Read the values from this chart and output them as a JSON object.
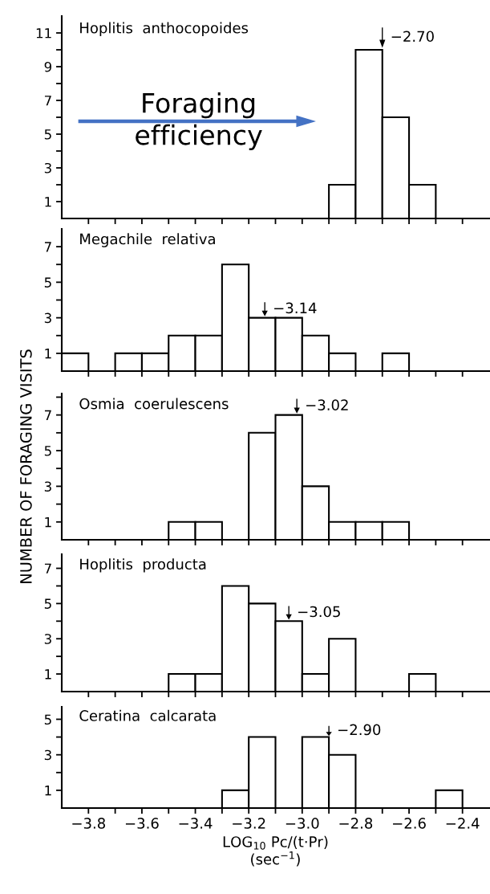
{
  "chart_data": [
    {
      "type": "histogram",
      "bins": [
        -3.9,
        -3.8,
        -3.7,
        -3.6,
        -3.5,
        -3.4,
        -3.3,
        -3.2,
        -3.1,
        -3.0,
        -2.9,
        -2.8,
        -2.7,
        -2.6,
        -2.5,
        -2.4,
        -2.3
      ],
      "values": [
        0,
        0,
        0,
        0,
        0,
        0,
        0,
        0,
        0,
        0,
        2,
        10,
        6,
        2,
        0,
        0
      ],
      "color": "#ffffff",
      "xlim": [
        -3.9,
        -2.3
      ],
      "xticks": [
        -3.8,
        -3.7,
        -3.6,
        -3.5,
        -3.4,
        -3.3,
        -3.2,
        -3.1,
        -3.0,
        -2.9,
        -2.8,
        -2.7,
        -2.6,
        -2.5,
        -2.4
      ],
      "ylim": [
        0,
        12
      ],
      "yticks": [
        1,
        {
          "value": 2,
          "label": null
        },
        3,
        {
          "value": 4,
          "label": null
        },
        5,
        {
          "value": 6,
          "label": null
        },
        7,
        {
          "value": 8,
          "label": null
        },
        9,
        {
          "value": 10,
          "label": null
        },
        11
      ],
      "tick_labels": "y",
      "annotations": [
        "Hoplitis  anthocopoides",
        "Foraging\nefficiency",
        {
          "text": "−2.70",
          "x": -2.7,
          "y": 10
        }
      ]
    },
    {
      "type": "histogram",
      "bins": [
        -3.9,
        -3.8,
        -3.7,
        -3.6,
        -3.5,
        -3.4,
        -3.3,
        -3.2,
        -3.1,
        -3.0,
        -2.9,
        -2.8,
        -2.7,
        -2.6,
        -2.5,
        -2.4,
        -2.3
      ],
      "values": [
        1,
        0,
        1,
        1,
        2,
        2,
        6,
        3,
        3,
        2,
        1,
        0,
        1,
        0,
        0,
        0
      ],
      "color": "#ffffff",
      "xlim": [
        -3.9,
        -2.3
      ],
      "xticks": [
        -3.8,
        -3.7,
        -3.6,
        -3.5,
        -3.4,
        -3.3,
        -3.2,
        -3.1,
        -3.0,
        -2.9,
        -2.8,
        -2.7,
        -2.6,
        -2.5,
        -2.4
      ],
      "ylim": [
        0,
        8
      ],
      "yticks": [
        1,
        {
          "value": 2,
          "label": null
        },
        3,
        {
          "value": 4,
          "label": null
        },
        5,
        {
          "value": 6,
          "label": null
        },
        7
      ],
      "tick_labels": "y",
      "annotations": [
        "Megachile  relativa",
        {
          "text": "−3.14",
          "x": -3.14,
          "y": 3
        }
      ]
    },
    {
      "type": "histogram",
      "bins": [
        -3.9,
        -3.8,
        -3.7,
        -3.6,
        -3.5,
        -3.4,
        -3.3,
        -3.2,
        -3.1,
        -3.0,
        -2.9,
        -2.8,
        -2.7,
        -2.6,
        -2.5,
        -2.4,
        -2.3
      ],
      "values": [
        0,
        0,
        0,
        0,
        1,
        1,
        0,
        6,
        7,
        3,
        1,
        1,
        1,
        0,
        0,
        0
      ],
      "color": "#ffffff",
      "xlim": [
        -3.9,
        -2.3
      ],
      "xticks": [
        -3.8,
        -3.7,
        -3.6,
        -3.5,
        -3.4,
        -3.3,
        -3.2,
        -3.1,
        -3.0,
        -2.9,
        -2.8,
        -2.7,
        -2.6,
        -2.5,
        -2.4
      ],
      "ylim": [
        0,
        8.2
      ],
      "yticks": [
        1,
        {
          "value": 2,
          "label": null
        },
        3,
        {
          "value": 4,
          "label": null
        },
        5,
        {
          "value": 6,
          "label": null
        },
        7,
        {
          "value": 8,
          "label": null
        }
      ],
      "tick_labels": "y",
      "ylabel": "NUMBER OF FORAGING VISITS",
      "annotations": [
        "Osmia  coerulescens",
        {
          "text": "−3.02",
          "x": -3.02,
          "y": 7
        }
      ]
    },
    {
      "type": "histogram",
      "bins": [
        -3.9,
        -3.8,
        -3.7,
        -3.6,
        -3.5,
        -3.4,
        -3.3,
        -3.2,
        -3.1,
        -3.0,
        -2.9,
        -2.8,
        -2.7,
        -2.6,
        -2.5,
        -2.4,
        -2.3
      ],
      "values": [
        0,
        0,
        0,
        0,
        1,
        1,
        6,
        5,
        4,
        1,
        3,
        0,
        0,
        1,
        0,
        0
      ],
      "color": "#ffffff",
      "xlim": [
        -3.9,
        -2.3
      ],
      "xticks": [
        -3.8,
        -3.7,
        -3.6,
        -3.5,
        -3.4,
        -3.3,
        -3.2,
        -3.1,
        -3.0,
        -2.9,
        -2.8,
        -2.7,
        -2.6,
        -2.5,
        -2.4
      ],
      "ylim": [
        0,
        7.8
      ],
      "yticks": [
        1,
        {
          "value": 2,
          "label": null
        },
        3,
        {
          "value": 4,
          "label": null
        },
        5,
        {
          "value": 6,
          "label": null
        },
        7
      ],
      "tick_labels": "y",
      "annotations": [
        "Hoplitis  producta",
        {
          "text": "−3.05",
          "x": -3.05,
          "y": 4
        }
      ]
    },
    {
      "type": "histogram",
      "bins": [
        -3.9,
        -3.8,
        -3.7,
        -3.6,
        -3.5,
        -3.4,
        -3.3,
        -3.2,
        -3.1,
        -3.0,
        -2.9,
        -2.8,
        -2.7,
        -2.6,
        -2.5,
        -2.4,
        -2.3
      ],
      "values": [
        0,
        0,
        0,
        0,
        0,
        0,
        1,
        4,
        0,
        4,
        3,
        0,
        0,
        0,
        1,
        0
      ],
      "color": "#ffffff",
      "xlim": [
        -3.9,
        -2.3
      ],
      "xticks": [
        {
          "value": -3.8,
          "label": "−3.8"
        },
        {
          "value": -3.7,
          "label": null
        },
        {
          "value": -3.6,
          "label": "−3.6"
        },
        {
          "value": -3.5,
          "label": null
        },
        {
          "value": -3.4,
          "label": "−3.4"
        },
        {
          "value": -3.3,
          "label": null
        },
        {
          "value": -3.2,
          "label": "−3.2"
        },
        {
          "value": -3.1,
          "label": null
        },
        {
          "value": -3.0,
          "label": "−3.0"
        },
        {
          "value": -2.9,
          "label": null
        },
        {
          "value": -2.8,
          "label": "−2.8"
        },
        {
          "value": -2.7,
          "label": null
        },
        {
          "value": -2.6,
          "label": "−2.6"
        },
        {
          "value": -2.5,
          "label": null
        },
        {
          "value": -2.4,
          "label": "−2.4"
        }
      ],
      "ylim": [
        0,
        5.7
      ],
      "yticks": [
        1,
        {
          "value": 2,
          "label": null
        },
        3,
        {
          "value": 4,
          "label": null
        },
        5
      ],
      "xlabel": "LOG$_{10}$ Pc/(t·Pr)\n(sec$^{−1}$)",
      "annotations": [
        "Ceratina  calcarata",
        {
          "text": "−2.90",
          "x": -2.9,
          "y": 4
        }
      ]
    }
  ]
}
